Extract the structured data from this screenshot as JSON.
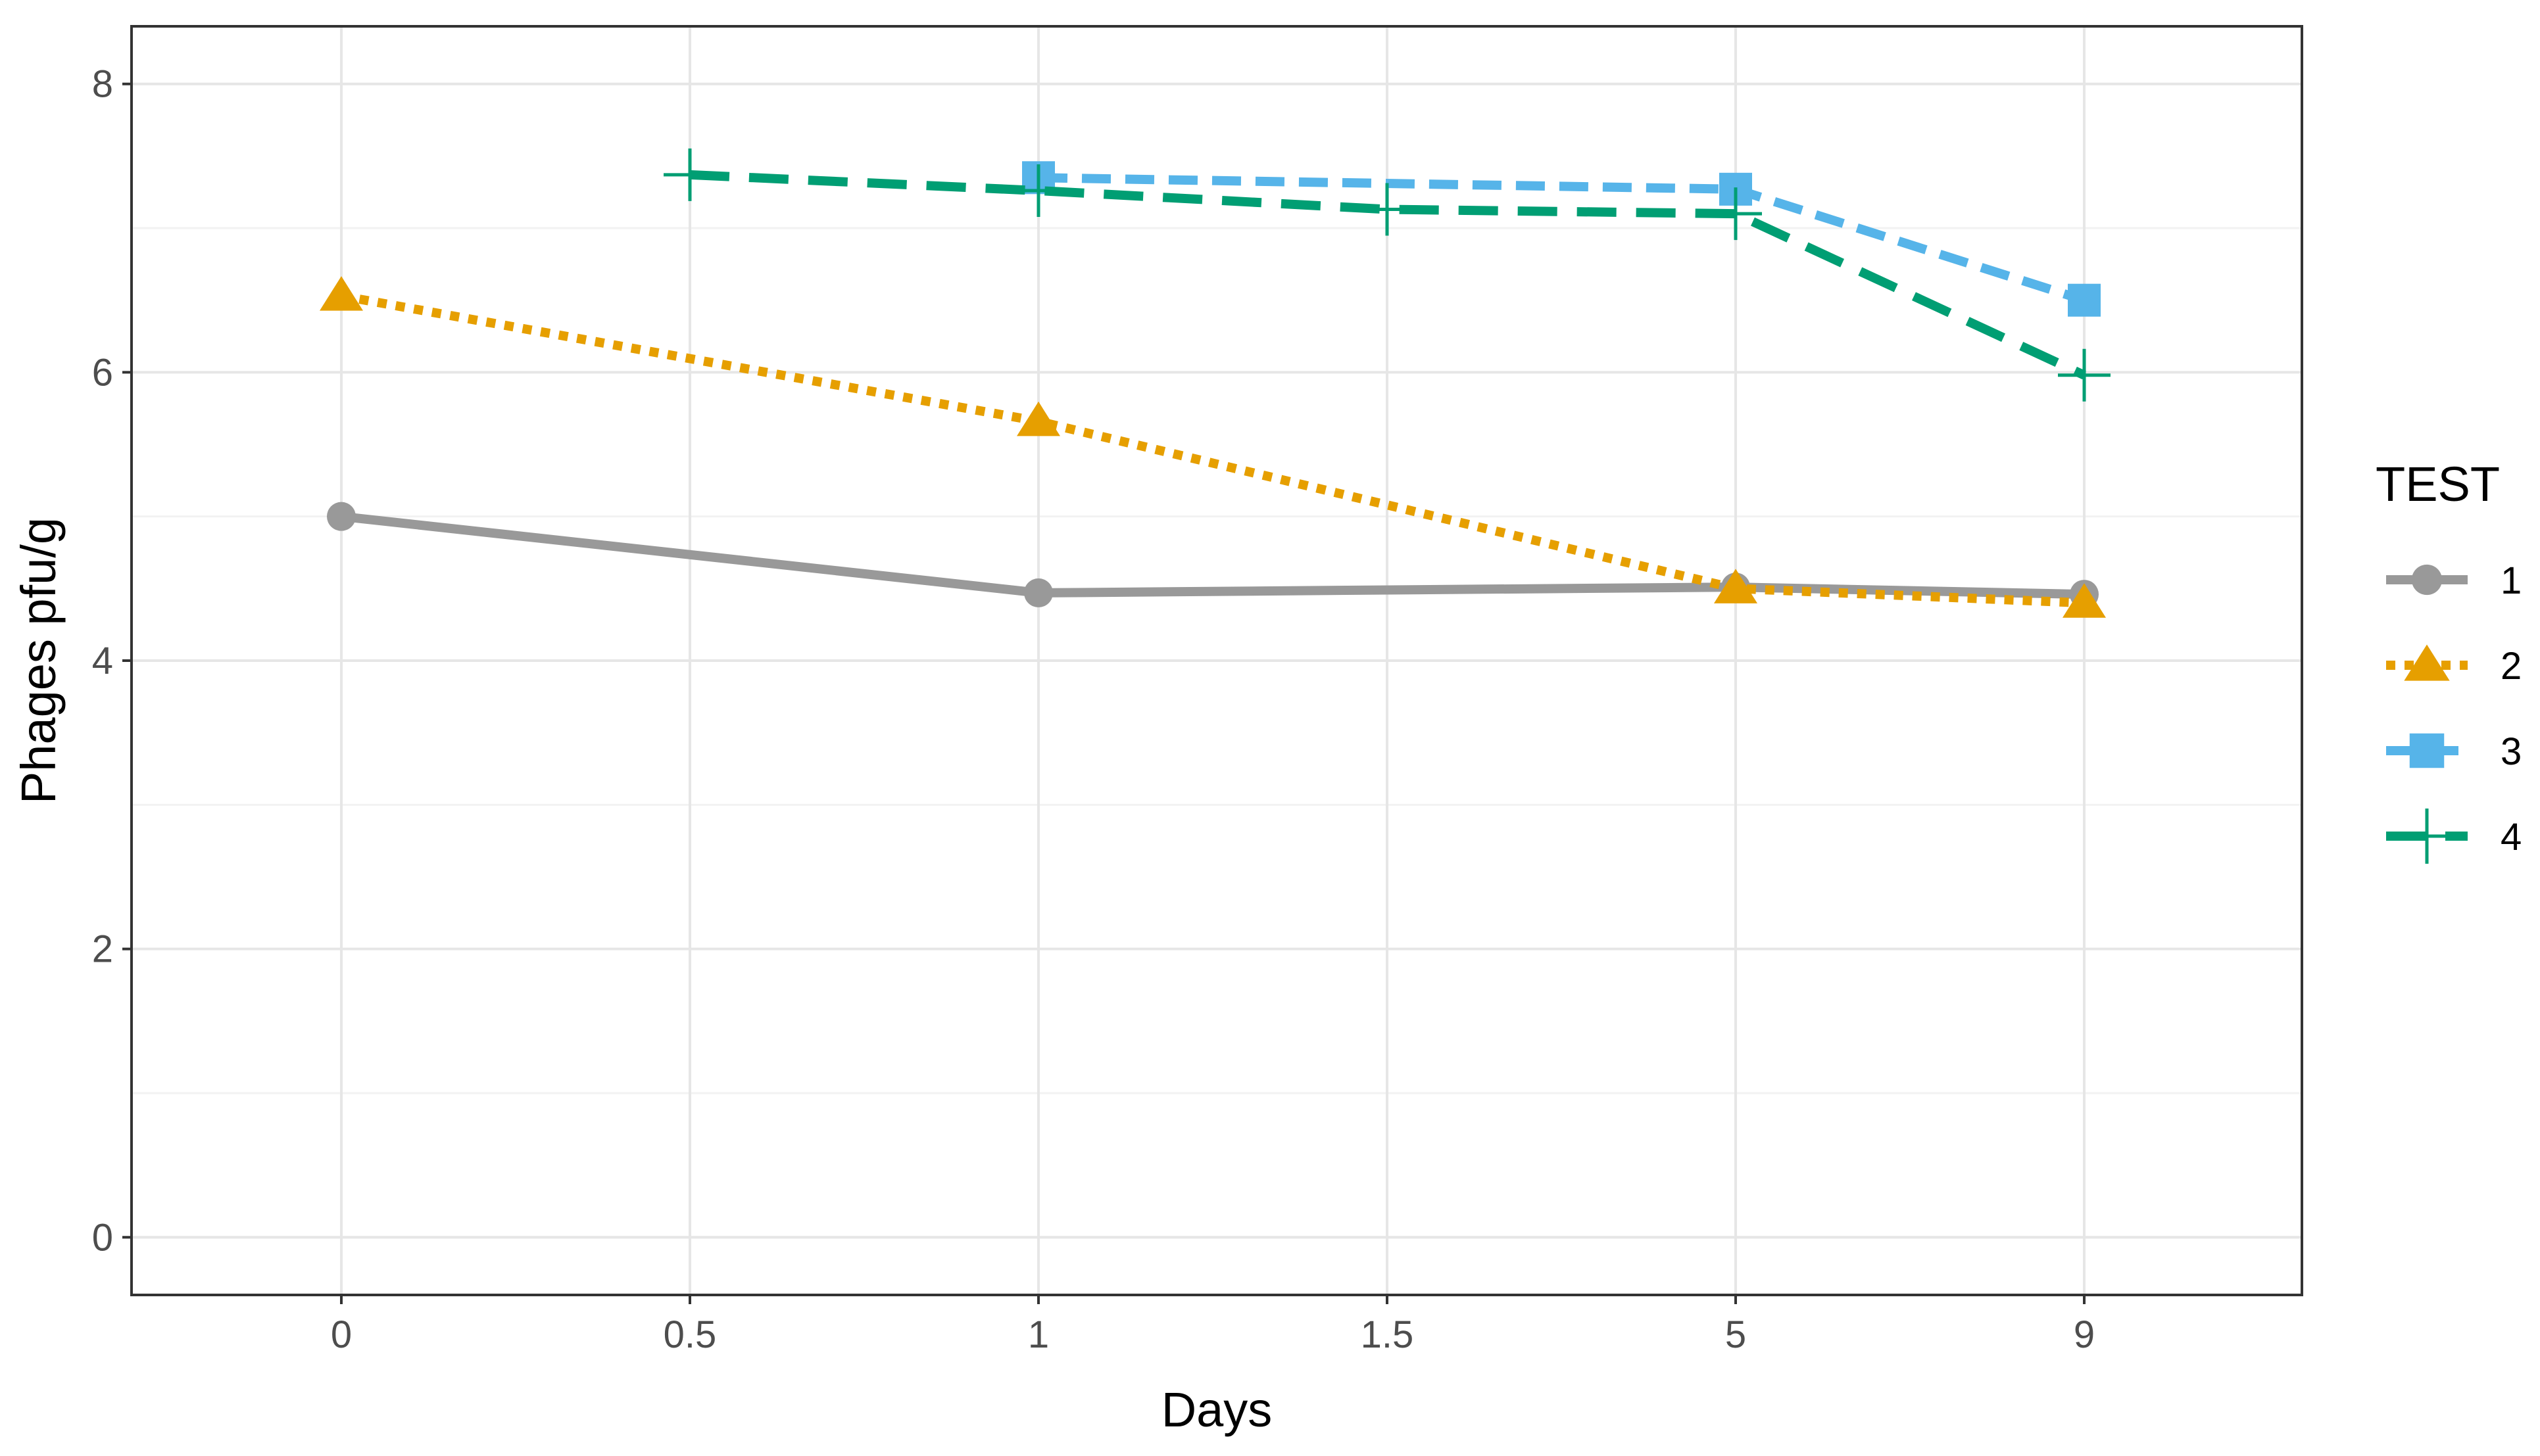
{
  "chart_data": {
    "type": "line",
    "title": "",
    "xlabel": "Days",
    "ylabel": "Phages pfu/g",
    "x_axis_scale": "categorical",
    "categories": [
      "0",
      "0.5",
      "1",
      "1.5",
      "5",
      "9"
    ],
    "y_ticks": [
      "0",
      "2",
      "4",
      "6",
      "8"
    ],
    "ylim": [
      -0.4,
      8.4
    ],
    "grid": true,
    "legend": {
      "title": "TEST",
      "placement": "right"
    },
    "series": [
      {
        "name": "1",
        "color": "#999999",
        "marker": "circle",
        "line_style": "solid",
        "values": [
          5.0,
          null,
          4.47,
          null,
          4.51,
          4.46
        ]
      },
      {
        "name": "2",
        "color": "#E69F00",
        "marker": "triangle",
        "line_style": "dotted",
        "values": [
          6.53,
          null,
          5.66,
          null,
          4.5,
          4.4
        ]
      },
      {
        "name": "3",
        "color": "#56B4E9",
        "marker": "square",
        "line_style": "dashed",
        "values": [
          null,
          null,
          7.35,
          null,
          7.27,
          6.5
        ]
      },
      {
        "name": "4",
        "color": "#009E73",
        "marker": "plus",
        "line_style": "longdash",
        "values": [
          null,
          7.37,
          7.26,
          7.13,
          7.1,
          5.98
        ]
      }
    ]
  }
}
